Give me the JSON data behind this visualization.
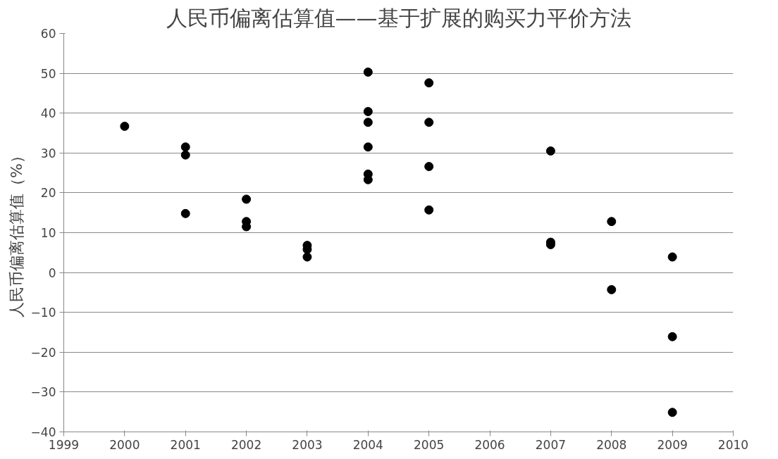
{
  "chart_data": {
    "type": "scatter",
    "title": "人民币偏离估算值——基于扩展的购买力平价方法",
    "ylabel": "人民币偏离估算值（%）",
    "x": [
      2000,
      2001,
      2001,
      2001,
      2002,
      2002,
      2002,
      2003,
      2003,
      2003,
      2004,
      2004,
      2004,
      2004,
      2004,
      2004,
      2005,
      2005,
      2005,
      2005,
      2007,
      2007,
      2007,
      2008,
      2008,
      2009,
      2009,
      2009
    ],
    "series": [
      {
        "color": "#000000",
        "values": [
          36.7,
          31.5,
          29.5,
          14.8,
          18.4,
          12.8,
          11.5,
          6.8,
          5.8,
          3.9,
          50.3,
          40.4,
          37.7,
          31.5,
          24.7,
          23.3,
          47.6,
          37.7,
          26.6,
          15.7,
          30.5,
          7.6,
          7.0,
          12.8,
          -4.3,
          3.9,
          -16.1,
          -35.1
        ]
      }
    ],
    "xlim": [
      1999,
      2010
    ],
    "xticks": [
      1999,
      2000,
      2001,
      2002,
      2003,
      2004,
      2005,
      2006,
      2007,
      2008,
      2009,
      2010
    ],
    "ylim": [
      -40,
      60
    ],
    "yticks": [
      -40,
      -30,
      -20,
      -10,
      0,
      10,
      20,
      30,
      40,
      50,
      60
    ],
    "grid": "y",
    "marker": "circle"
  }
}
